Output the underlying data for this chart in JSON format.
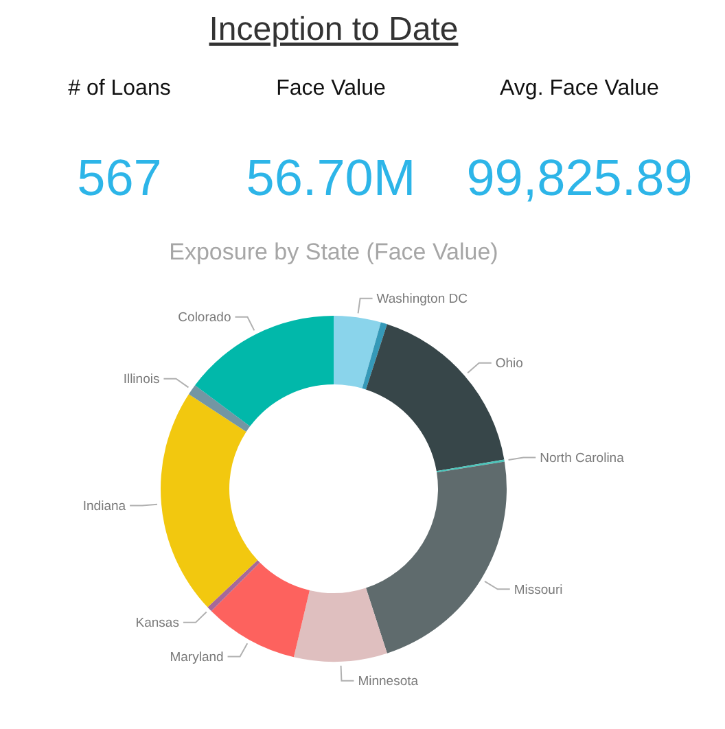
{
  "chart_data": [
    {
      "type": "other",
      "title": "Inception to Date",
      "annotations": [
        "# of Loans",
        "567",
        "Face Value",
        "56.70M",
        "Avg. Face Value",
        "99,825.89"
      ]
    },
    {
      "type": "donut",
      "title": "Exposure by State (Face Value)",
      "categories": [
        "Washington DC",
        null,
        "Ohio",
        "North Carolina",
        "Missouri",
        "Minnesota",
        "Maryland",
        "Kansas",
        "Indiana",
        "Illinois",
        "Colorado"
      ],
      "values": [
        4.4,
        0.6,
        17.3,
        0.2,
        22.5,
        8.7,
        8.8,
        0.5,
        21.2,
        1.0,
        14.8
      ],
      "colors": [
        "#8ad4eb",
        "#3599b8",
        "#374649",
        "#4ac5bb",
        "#5f6b6d",
        "#dfbfbf",
        "#fd625e",
        "#a66999",
        "#f2c80f",
        "#7396a3",
        "#01b8aa"
      ],
      "legend": false
    }
  ]
}
